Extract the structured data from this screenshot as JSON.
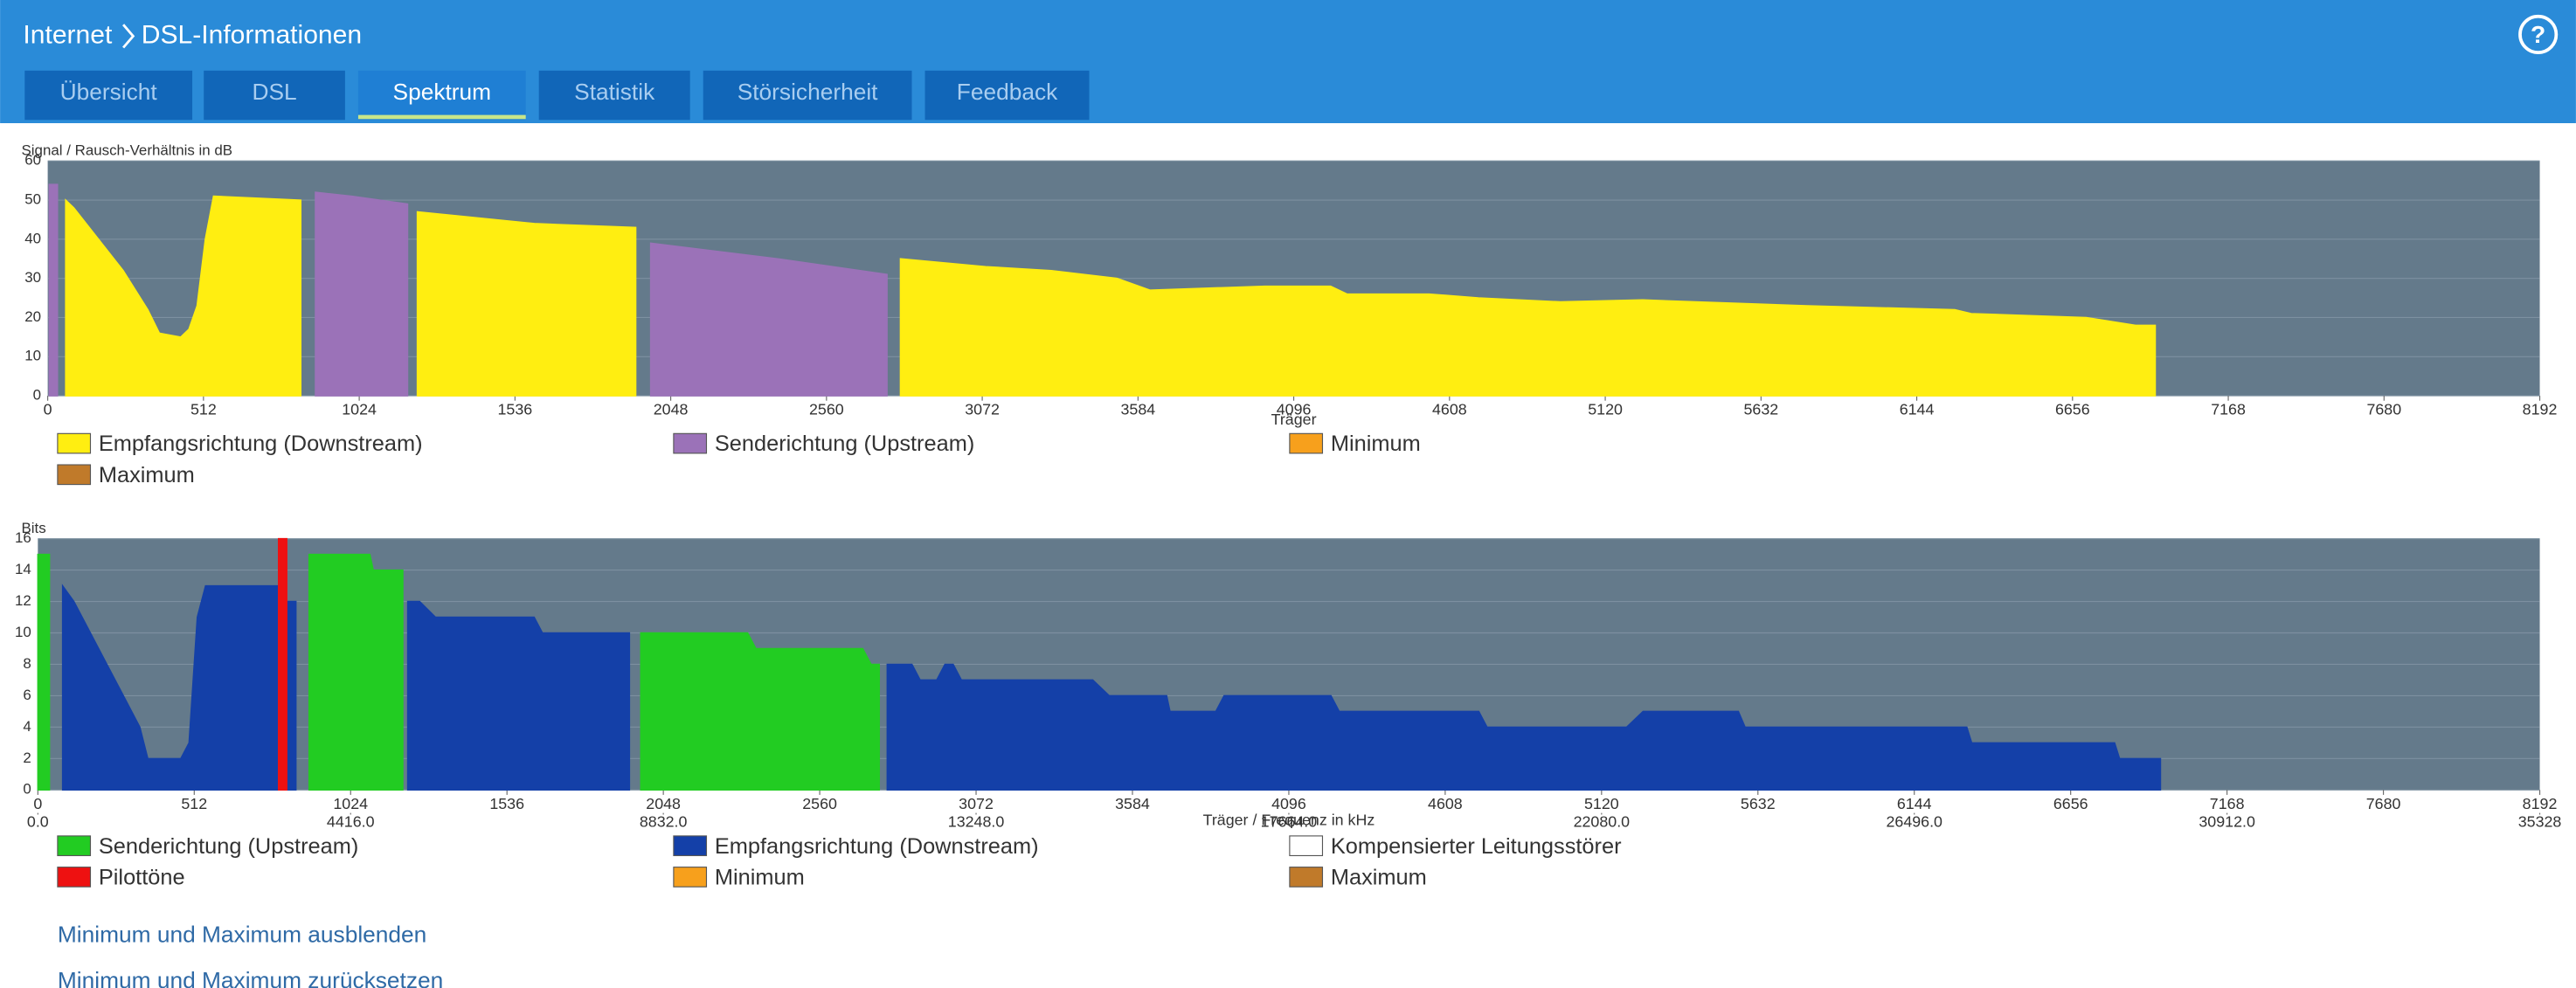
{
  "header": {
    "breadcrumb": [
      "Internet",
      "DSL-Informationen"
    ],
    "help": "?"
  },
  "tabs": [
    "Übersicht",
    "DSL",
    "Spektrum",
    "Statistik",
    "Störsicherheit",
    "Feedback"
  ],
  "active_tab": 2,
  "chart_data": [
    {
      "type": "area",
      "y_label": "Signal / Rausch-Verhältnis in dB",
      "x_label": "Träger",
      "xlim": [
        0,
        8192
      ],
      "xticks": [
        0,
        512,
        1024,
        1536,
        2048,
        2560,
        3072,
        3584,
        4096,
        4608,
        5120,
        5632,
        6144,
        6656,
        7168,
        7680,
        8192
      ],
      "ylim": [
        0,
        60
      ],
      "yticks": [
        0,
        10,
        20,
        30,
        40,
        50,
        60
      ],
      "grid": true,
      "series": [
        {
          "name": "Empfangsrichtung (Downstream)",
          "color": "#ffee11",
          "x": [
            59,
            86,
            167,
            248,
            329,
            367,
            437,
            464,
            491,
            518,
            545,
            832,
            842,
            1215,
            1600,
            1933,
            2400,
            2803,
            3083,
            3299,
            3515,
            3623,
            4001,
            4217,
            4271,
            4541,
            4703,
            4973,
            5243,
            5783,
            6269,
            6323,
            6701,
            6863,
            6928
          ],
          "values": [
            50,
            48,
            40,
            32,
            22,
            16,
            15,
            17,
            23,
            40,
            51,
            50,
            null,
            47,
            44,
            43,
            null,
            35,
            33,
            32,
            30,
            27,
            28,
            28,
            26,
            26,
            25,
            24,
            24.5,
            23,
            22,
            21,
            20,
            18,
            18
          ]
        },
        {
          "name": "Senderichtung (Upstream)",
          "color": "#9b72b8",
          "x": [
            5,
            32,
            300,
            880,
            1000,
            1183,
            1500,
            1982,
            2400,
            2759
          ],
          "values": [
            54,
            54,
            null,
            52,
            51,
            49,
            null,
            39,
            35,
            31
          ]
        },
        {
          "name": "Minimum",
          "color": "#f7a01c"
        },
        {
          "name": "Maximum",
          "color": "#c07a2a"
        }
      ]
    },
    {
      "type": "area",
      "y_label": "Bits",
      "x_label": "Träger / Frequenz in kHz",
      "xlim": [
        0,
        8192
      ],
      "xticks": [
        0,
        512,
        1024,
        1536,
        2048,
        2560,
        3072,
        3584,
        4096,
        4608,
        5120,
        5632,
        6144,
        6656,
        7168,
        7680,
        8192
      ],
      "x2lim": [
        0,
        35328
      ],
      "x2ticks": [
        {
          "value": 0,
          "label": "0.0"
        },
        {
          "value": 4416,
          "label": "4416.0"
        },
        {
          "value": 8832,
          "label": "8832.0"
        },
        {
          "value": 13248,
          "label": "13248.0"
        },
        {
          "value": 17664,
          "label": "17664.0"
        },
        {
          "value": 22080,
          "label": "22080.0"
        },
        {
          "value": 26496,
          "label": "26496.0"
        },
        {
          "value": 30912,
          "label": "30912.0"
        },
        35328
      ],
      "ylim": [
        0,
        16
      ],
      "yticks": [
        0,
        2,
        4,
        6,
        8,
        10,
        12,
        14,
        16
      ],
      "grid": true,
      "series": [
        {
          "name": "Senderichtung (Upstream)",
          "color": "#22cc22",
          "x": [
            0,
            38,
            400,
            888,
            898,
            1087,
            1098,
            1184,
            1195,
            1600,
            1974,
            2324,
            2351,
            2701,
            2728,
            2755
          ],
          "values": [
            15,
            15,
            null,
            15,
            15,
            15,
            14,
            14,
            14,
            null,
            10,
            10,
            9,
            9,
            8,
            8
          ]
        },
        {
          "name": "Empfangsrichtung (Downstream)",
          "color": "#1440a8",
          "x": [
            81,
            118,
            172,
            226,
            280,
            334,
            360,
            468,
            495,
            522,
            549,
            780,
            791,
            805,
            818,
            845,
            1000,
            1211,
            1250,
            1302,
            1625,
            1652,
            1937,
            2400,
            2781,
            2862,
            2889,
            2943,
            2970,
            2997,
            3024,
            3454,
            3508,
            3696,
            3707,
            3857,
            3884,
            4234,
            4261,
            4718,
            4745,
            5202,
            5256,
            5568,
            5590,
            6316,
            6332,
            6800,
            6816,
            6950
          ],
          "values": [
            13,
            12,
            10,
            8,
            6,
            4,
            2,
            2,
            3,
            11,
            13,
            13,
            13,
            null,
            12,
            12,
            null,
            12,
            12,
            11,
            11,
            10,
            10,
            null,
            8,
            8,
            7,
            7,
            8,
            8,
            7,
            7,
            6,
            6,
            5,
            5,
            6,
            6,
            5,
            5,
            4,
            4,
            5,
            5,
            4,
            4,
            3,
            3,
            2,
            2
          ]
        },
        {
          "name": "Kompensierter Leitungsstörer",
          "color": "#ffffff"
        },
        {
          "name": "Pilottöne",
          "color": "#ee1111",
          "x": [
            788,
            815
          ],
          "values": [
            16,
            16
          ]
        },
        {
          "name": "Minimum",
          "color": "#f7a01c"
        },
        {
          "name": "Maximum",
          "color": "#c07a2a"
        }
      ]
    }
  ],
  "links": [
    "Minimum und Maximum ausblenden",
    "Minimum und Maximum zurücksetzen"
  ]
}
